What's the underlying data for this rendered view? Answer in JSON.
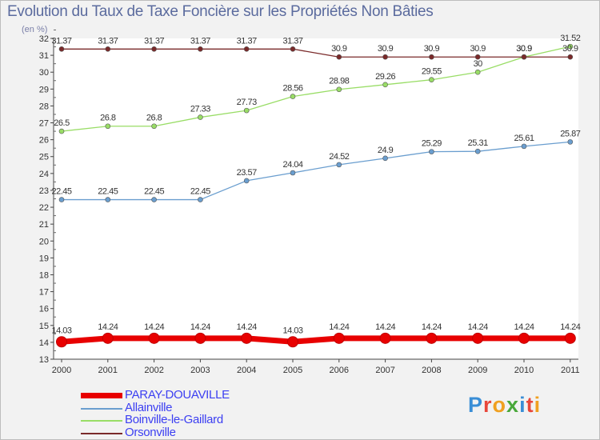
{
  "title": "Evolution du Taux de Taxe Foncière sur les Propriétés Non Bâties",
  "subtitle": "(en %)",
  "logo": {
    "text": "Proxiti",
    "colors": [
      "#3a8ed6",
      "#e8463a",
      "#f0a020",
      "#49a83a",
      "#3a8ed6",
      "#e8463a",
      "#f0a020"
    ]
  },
  "chart_data": {
    "type": "line",
    "title": "Evolution du Taux de Taxe Foncière sur les Propriétés Non Bâties",
    "ylabel": "(en %)",
    "xlabel": "",
    "x": [
      "2000",
      "2001",
      "2002",
      "2003",
      "2004",
      "2005",
      "2006",
      "2007",
      "2008",
      "2009",
      "2010",
      "2011"
    ],
    "ylim": [
      13,
      32
    ],
    "yticks": [
      13,
      14,
      15,
      16,
      17,
      18,
      19,
      20,
      21,
      22,
      23,
      24,
      25,
      26,
      27,
      28,
      29,
      30,
      31,
      32
    ],
    "grid": false,
    "legend_position": "bottom-left",
    "series": [
      {
        "name": "PARAY-DOUAVILLE",
        "color": "#e80000",
        "emphasis": true,
        "values": [
          14.03,
          14.24,
          14.24,
          14.24,
          14.24,
          14.03,
          14.24,
          14.24,
          14.24,
          14.24,
          14.24,
          14.24
        ],
        "labels": [
          "14.03",
          "14.24",
          "14.24",
          "14.24",
          "14.24",
          "14.03",
          "14.24",
          "14.24",
          "14.24",
          "14.24",
          "14.24",
          "14.24"
        ]
      },
      {
        "name": "Allainville",
        "color": "#6a9ecf",
        "emphasis": false,
        "values": [
          22.45,
          22.45,
          22.45,
          22.45,
          23.57,
          24.04,
          24.52,
          24.9,
          25.29,
          25.31,
          25.61,
          25.87
        ],
        "labels": [
          "22.45",
          "22.45",
          "22.45",
          "22.45",
          "23.57",
          "24.04",
          "24.52",
          "24.9",
          "25.29",
          "25.31",
          "25.61",
          "25.87"
        ]
      },
      {
        "name": "Boinville-le-Gaillard",
        "color": "#99dd66",
        "emphasis": false,
        "values": [
          26.5,
          26.8,
          26.8,
          27.33,
          27.73,
          28.56,
          28.98,
          29.26,
          29.55,
          30,
          30.9,
          31.52
        ],
        "labels": [
          "26.5",
          "26.8",
          "26.8",
          "27.33",
          "27.73",
          "28.56",
          "28.98",
          "29.26",
          "29.55",
          "30",
          "30.9",
          "31.52"
        ]
      },
      {
        "name": "Orsonville",
        "color": "#7a2a2a",
        "emphasis": false,
        "values": [
          31.37,
          31.37,
          31.37,
          31.37,
          31.37,
          31.37,
          30.9,
          30.9,
          30.9,
          30.9,
          30.9,
          30.9
        ],
        "labels": [
          "31.37",
          "31.37",
          "31.37",
          "31.37",
          "31.37",
          "31.37",
          "30.9",
          "30.9",
          "30.9",
          "30.9",
          "30.9",
          "30.9"
        ]
      }
    ]
  }
}
